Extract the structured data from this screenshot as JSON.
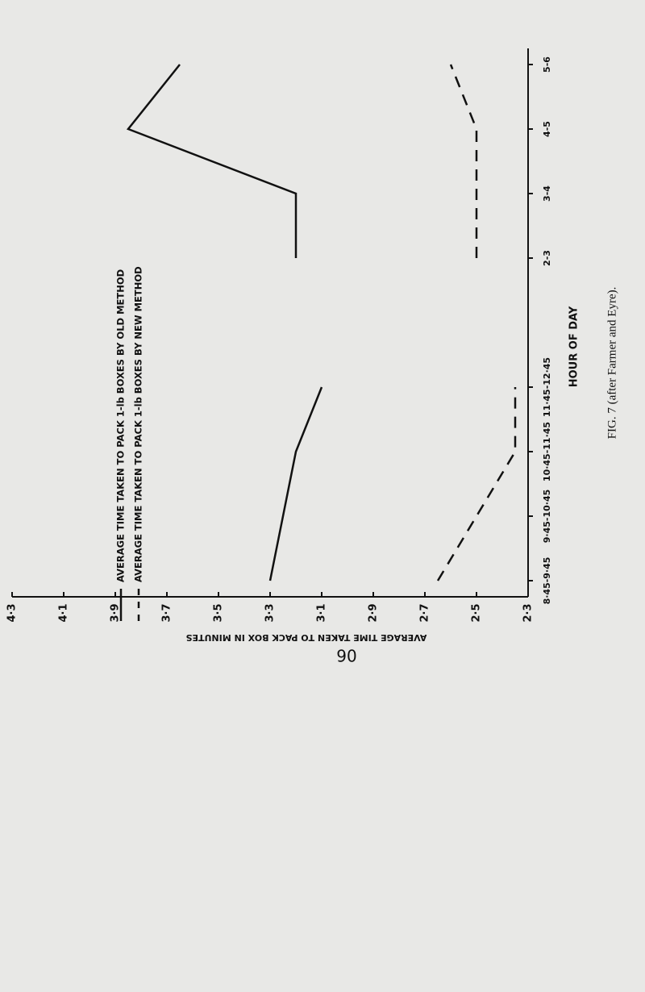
{
  "chart_data": {
    "type": "line",
    "x_label": "HOUR OF DAY",
    "y_label": "AVERAGE TIME TAKEN TO PACK BOX IN MINUTES",
    "caption": "FIG. 7 (after Farmer and Eyre).",
    "page_number": "90",
    "categories": [
      "8·45-9·45",
      "9·45-10·45",
      "10·45-11·45",
      "11·45-12·45",
      null,
      "2-3",
      "3-4",
      "4-5",
      "5-6"
    ],
    "ylim": [
      4.3,
      2.3
    ],
    "yticks": [
      {
        "value": 4.3,
        "label": "4·3"
      },
      {
        "value": 4.1,
        "label": "4·1"
      },
      {
        "value": 3.9,
        "label": "3·9"
      },
      {
        "value": 3.7,
        "label": "3·7"
      },
      {
        "value": 3.5,
        "label": "3·5"
      },
      {
        "value": 3.3,
        "label": "3·3"
      },
      {
        "value": 3.1,
        "label": "3·1"
      },
      {
        "value": 2.9,
        "label": "2·9"
      },
      {
        "value": 2.7,
        "label": "2·7"
      },
      {
        "value": 2.5,
        "label": "2·5"
      },
      {
        "value": 2.3,
        "label": "2·3"
      }
    ],
    "series": [
      {
        "name": "AVERAGE TIME TAKEN TO PACK 1-lb BOXES BY OLD METHOD",
        "color": "#111111",
        "dash": false,
        "values": [
          3.3,
          3.25,
          3.2,
          3.1,
          null,
          3.2,
          3.2,
          3.85,
          3.65
        ]
      },
      {
        "name": "AVERAGE TIME TAKEN TO PACK 1-lb BOXES BY NEW METHOD",
        "color": "#111111",
        "dash": true,
        "values": [
          2.65,
          2.5,
          2.35,
          2.35,
          null,
          2.5,
          2.5,
          2.5,
          2.6
        ]
      }
    ]
  }
}
